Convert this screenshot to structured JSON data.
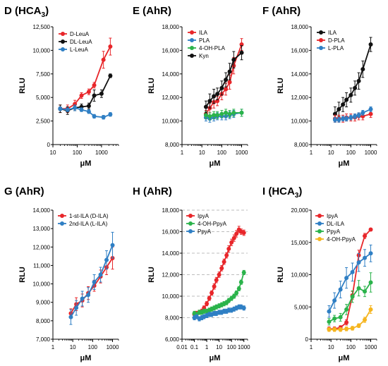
{
  "figure": {
    "panel_titles": [
      {
        "letter": "D",
        "label": "HCA",
        "sub": "3"
      },
      {
        "letter": "E",
        "label": "AhR",
        "sub": ""
      },
      {
        "letter": "F",
        "label": "AhR",
        "sub": ""
      },
      {
        "letter": "G",
        "label": "AhR",
        "sub": ""
      },
      {
        "letter": "H",
        "label": "AhR",
        "sub": ""
      },
      {
        "letter": "I",
        "label": "HCA",
        "sub": "3"
      }
    ]
  },
  "chart_data": [
    {
      "type": "line",
      "xscale": "log",
      "grid": false,
      "xlabel": "μM",
      "ylabel": "RLU",
      "xlim": [
        10,
        5000
      ],
      "ylim": [
        0,
        12500
      ],
      "xticks": [
        10,
        100,
        1000
      ],
      "xticklabels": [
        "10",
        "100",
        "1000"
      ],
      "yticks": [
        0,
        2500,
        5000,
        7500,
        10000,
        12500
      ],
      "yticklabels": [
        "0",
        "2,500",
        "5,000",
        "7,500",
        "10,000",
        "12,500"
      ],
      "legend": "top-left",
      "series": [
        {
          "name": "D-LeuA",
          "color": "#e8262a",
          "x": [
            20,
            40,
            80,
            150,
            300,
            500,
            1200,
            2300
          ],
          "y": [
            3800,
            3800,
            4300,
            5200,
            5600,
            6300,
            9000,
            10400
          ],
          "err": [
            400,
            400,
            400,
            300,
            300,
            300,
            900,
            900
          ]
        },
        {
          "name": "DL-LeuA",
          "color": "#111111",
          "x": [
            20,
            40,
            80,
            150,
            300,
            500,
            1000,
            2300
          ],
          "y": [
            3800,
            3600,
            3900,
            4000,
            4100,
            5200,
            5400,
            7300
          ],
          "err": [
            400,
            400,
            300,
            300,
            300,
            600,
            400,
            200
          ]
        },
        {
          "name": "L-LeuA",
          "color": "#2f7fc4",
          "x": [
            20,
            40,
            80,
            150,
            300,
            500,
            1200,
            2300
          ],
          "y": [
            3800,
            3700,
            3900,
            3700,
            3500,
            3000,
            2900,
            3200
          ],
          "err": [
            200,
            200,
            300,
            200,
            200,
            200,
            200,
            200
          ]
        }
      ]
    },
    {
      "type": "line",
      "xscale": "log",
      "grid": false,
      "xlabel": "μM",
      "ylabel": "RLU",
      "xlim": [
        1,
        2000
      ],
      "ylim": [
        8000,
        18000
      ],
      "xticks": [
        1,
        10,
        100,
        1000
      ],
      "xticklabels": [
        "1",
        "10",
        "100",
        "1000"
      ],
      "yticks": [
        8000,
        10000,
        12000,
        14000,
        16000,
        18000
      ],
      "yticklabels": [
        "8,000",
        "10,000",
        "12,000",
        "14,000",
        "16,000",
        "18,000"
      ],
      "legend": "top-left",
      "series": [
        {
          "name": "ILA",
          "color": "#e8262a",
          "x": [
            16,
            25,
            40,
            60,
            100,
            160,
            250,
            400,
            1000
          ],
          "y": [
            10600,
            11100,
            11600,
            11700,
            12300,
            12700,
            13300,
            14700,
            16500
          ],
          "err": [
            300,
            400,
            500,
            400,
            500,
            500,
            600,
            700,
            500
          ]
        },
        {
          "name": "PLA",
          "color": "#2f7fc4",
          "x": [
            16,
            25,
            40,
            60,
            100,
            160,
            250,
            400,
            1000
          ],
          "y": [
            10300,
            10200,
            10300,
            10400,
            10400,
            10400,
            10500,
            10600,
            10700
          ],
          "err": [
            300,
            300,
            300,
            300,
            300,
            300,
            300,
            300,
            300
          ]
        },
        {
          "name": "4-OH-PLA",
          "color": "#2bb34b",
          "x": [
            16,
            25,
            40,
            60,
            100,
            160,
            250,
            400,
            1000
          ],
          "y": [
            10500,
            10400,
            10500,
            10500,
            10600,
            10700,
            10600,
            10700,
            10700
          ],
          "err": [
            300,
            300,
            300,
            300,
            300,
            300,
            300,
            300,
            300
          ]
        },
        {
          "name": "Kyn",
          "color": "#111111",
          "x": [
            16,
            25,
            40,
            60,
            100,
            160,
            250,
            400,
            1000
          ],
          "y": [
            11200,
            11700,
            12100,
            12300,
            12800,
            13500,
            14200,
            15200,
            15800
          ],
          "err": [
            500,
            600,
            600,
            500,
            600,
            600,
            700,
            700,
            600
          ]
        }
      ]
    },
    {
      "type": "line",
      "xscale": "log",
      "grid": false,
      "xlabel": "μM",
      "ylabel": "RLU",
      "xlim": [
        1,
        2000
      ],
      "ylim": [
        8000,
        18000
      ],
      "xticks": [
        1,
        10,
        100,
        1000
      ],
      "xticklabels": [
        "1",
        "10",
        "100",
        "1000"
      ],
      "yticks": [
        8000,
        10000,
        12000,
        14000,
        16000,
        18000
      ],
      "yticklabels": [
        "8,000",
        "10,000",
        "12,000",
        "14,000",
        "16,000",
        "18,000"
      ],
      "legend": "top-left",
      "series": [
        {
          "name": "ILA",
          "color": "#111111",
          "x": [
            16,
            25,
            40,
            60,
            100,
            160,
            250,
            400,
            1000
          ],
          "y": [
            10600,
            11000,
            11400,
            11800,
            12200,
            12800,
            13400,
            14400,
            16500
          ],
          "err": [
            600,
            600,
            600,
            600,
            600,
            600,
            700,
            700,
            600
          ]
        },
        {
          "name": "D-PLA",
          "color": "#e8262a",
          "x": [
            16,
            25,
            40,
            60,
            100,
            160,
            250,
            400,
            1000
          ],
          "y": [
            10200,
            10200,
            10200,
            10300,
            10300,
            10300,
            10400,
            10400,
            10600
          ],
          "err": [
            300,
            300,
            300,
            300,
            300,
            300,
            300,
            300,
            300
          ]
        },
        {
          "name": "L-PLA",
          "color": "#2f7fc4",
          "x": [
            16,
            25,
            40,
            60,
            100,
            160,
            250,
            400,
            1000
          ],
          "y": [
            10100,
            10100,
            10200,
            10200,
            10300,
            10400,
            10500,
            10700,
            11000
          ],
          "err": [
            200,
            200,
            200,
            200,
            200,
            200,
            200,
            200,
            200
          ]
        }
      ]
    },
    {
      "type": "line",
      "xscale": "log",
      "grid": false,
      "xlabel": "μM",
      "ylabel": "RLU",
      "xlim": [
        1,
        2000
      ],
      "ylim": [
        7000,
        14000
      ],
      "xticks": [
        1,
        10,
        100,
        1000
      ],
      "xticklabels": [
        "1",
        "10",
        "100",
        "1000"
      ],
      "yticks": [
        7000,
        8000,
        9000,
        10000,
        11000,
        12000,
        13000,
        14000
      ],
      "yticklabels": [
        "7,000",
        "8,000",
        "9,000",
        "10,000",
        "11,000",
        "12,000",
        "13,000",
        "14,000"
      ],
      "legend": "top-left",
      "series": [
        {
          "name": "1-st-ILA (D-ILA)",
          "color": "#e8262a",
          "x": [
            8,
            15,
            30,
            60,
            120,
            250,
            500,
            1000
          ],
          "y": [
            8400,
            8900,
            9100,
            9500,
            9900,
            10400,
            10900,
            11400
          ],
          "err": [
            250,
            350,
            350,
            350,
            300,
            350,
            400,
            600
          ]
        },
        {
          "name": "2nd-ILA (L-ILA)",
          "color": "#2f7fc4",
          "x": [
            8,
            15,
            30,
            60,
            120,
            250,
            500,
            1000
          ],
          "y": [
            8200,
            8700,
            9200,
            9400,
            10100,
            10500,
            11300,
            12100
          ],
          "err": [
            400,
            400,
            400,
            400,
            400,
            400,
            500,
            700
          ]
        }
      ]
    },
    {
      "type": "line",
      "xscale": "log",
      "grid": true,
      "xlabel": "μM",
      "ylabel": "RLU",
      "xlim": [
        0.01,
        2000
      ],
      "ylim": [
        6000,
        18000
      ],
      "xticks": [
        0.01,
        0.1,
        1,
        10,
        100,
        1000
      ],
      "xticklabels": [
        "0.01",
        "0.1",
        "1",
        "10",
        "100",
        "1000"
      ],
      "yticks": [
        6000,
        8000,
        10000,
        12000,
        14000,
        16000,
        18000
      ],
      "yticklabels": [
        "6,000",
        "8,000",
        "10,000",
        "12,000",
        "14,000",
        "16,000",
        "18,000"
      ],
      "legend": "top-left",
      "series": [
        {
          "name": "IpyA",
          "color": "#e8262a",
          "x": [
            0.1,
            0.15,
            0.25,
            0.4,
            0.6,
            1,
            1.6,
            2.5,
            4,
            6,
            10,
            16,
            25,
            40,
            60,
            100,
            160,
            250,
            400,
            600,
            1000
          ],
          "y": [
            8300,
            8400,
            8500,
            8600,
            8900,
            9300,
            9800,
            10300,
            10900,
            11500,
            12000,
            12600,
            13200,
            13800,
            14400,
            15000,
            15400,
            15800,
            16200,
            16000,
            15900
          ],
          "err": [
            200,
            200,
            200,
            200,
            200,
            200,
            200,
            200,
            250,
            250,
            250,
            250,
            250,
            250,
            300,
            300,
            300,
            300,
            300,
            250,
            250
          ]
        },
        {
          "name": "4-OH-PpyA",
          "color": "#2bb34b",
          "x": [
            0.1,
            0.15,
            0.25,
            0.4,
            0.6,
            1,
            1.6,
            2.5,
            4,
            6,
            10,
            16,
            25,
            40,
            60,
            100,
            160,
            250,
            400,
            600,
            1000
          ],
          "y": [
            8400,
            8300,
            8500,
            8500,
            8600,
            8600,
            8700,
            8800,
            8900,
            9000,
            9100,
            9200,
            9300,
            9400,
            9600,
            9800,
            10000,
            10300,
            10700,
            11300,
            12200
          ],
          "err": [
            200,
            200,
            200,
            200,
            200,
            200,
            200,
            200,
            200,
            200,
            200,
            200,
            200,
            200,
            200,
            200,
            200,
            200,
            200,
            200,
            200
          ]
        },
        {
          "name": "PpyA",
          "color": "#2f7fc4",
          "x": [
            0.1,
            0.15,
            0.25,
            0.4,
            0.6,
            1,
            1.6,
            2.5,
            4,
            6,
            10,
            16,
            25,
            40,
            60,
            100,
            160,
            250,
            400,
            600,
            1000
          ],
          "y": [
            8000,
            8100,
            7900,
            8000,
            8100,
            8200,
            8300,
            8300,
            8400,
            8400,
            8500,
            8500,
            8600,
            8600,
            8700,
            8700,
            8800,
            8900,
            9000,
            9000,
            8900
          ],
          "err": [
            200,
            200,
            200,
            200,
            200,
            200,
            200,
            200,
            200,
            200,
            200,
            200,
            200,
            200,
            200,
            200,
            200,
            200,
            200,
            200,
            200
          ]
        }
      ]
    },
    {
      "type": "line",
      "xscale": "log",
      "grid": false,
      "xlabel": "μM",
      "ylabel": "RLU",
      "xlim": [
        1,
        2000
      ],
      "ylim": [
        0,
        20000
      ],
      "xticks": [
        1,
        10,
        100,
        1000
      ],
      "xticklabels": [
        "1",
        "10",
        "100",
        "1000"
      ],
      "yticks": [
        0,
        5000,
        10000,
        15000,
        20000
      ],
      "yticklabels": [
        "0",
        "5,000",
        "10,000",
        "15,000",
        "20,000"
      ],
      "legend": "top-left",
      "series": [
        {
          "name": "IpyA",
          "color": "#e8262a",
          "x": [
            8,
            15,
            30,
            60,
            120,
            250,
            500,
            1000
          ],
          "y": [
            1600,
            1600,
            1800,
            2600,
            6800,
            13000,
            16000,
            17000
          ],
          "err": [
            300,
            300,
            300,
            400,
            600,
            800,
            400,
            200
          ]
        },
        {
          "name": "DL-ILA",
          "color": "#2f7fc4",
          "x": [
            8,
            15,
            30,
            60,
            120,
            250,
            500,
            1000
          ],
          "y": [
            4300,
            6000,
            7700,
            9500,
            10400,
            11900,
            12600,
            13300
          ],
          "err": [
            900,
            1200,
            1300,
            1600,
            1400,
            1400,
            1300,
            1300
          ]
        },
        {
          "name": "PpyA",
          "color": "#2bb34b",
          "x": [
            8,
            15,
            30,
            60,
            120,
            250,
            500,
            1000
          ],
          "y": [
            2700,
            3200,
            3400,
            4600,
            6600,
            7900,
            7400,
            8800
          ],
          "err": [
            500,
            500,
            600,
            800,
            900,
            1200,
            800,
            1500
          ]
        },
        {
          "name": "4-OH-PpyA",
          "color": "#f5b51e",
          "x": [
            8,
            15,
            30,
            60,
            120,
            250,
            500,
            1000
          ],
          "y": [
            1500,
            1500,
            1500,
            1600,
            1700,
            2100,
            3000,
            4600
          ],
          "err": [
            300,
            300,
            300,
            300,
            300,
            300,
            400,
            600
          ]
        }
      ]
    }
  ]
}
